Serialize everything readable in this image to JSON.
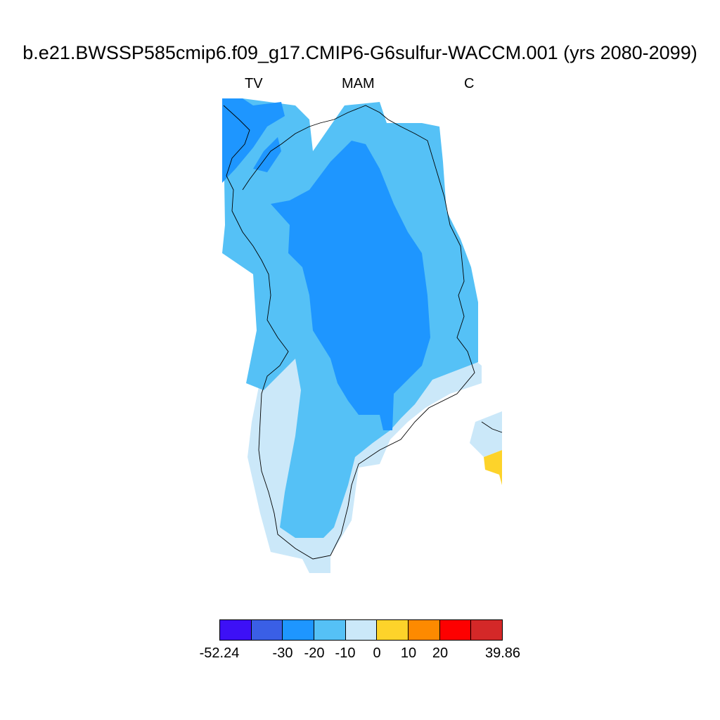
{
  "title": "b.e21.BWSSP585cmip6.f09_g17.CMIP6-G6sulfur-WACCM.001 (yrs 2080-2099)",
  "subtitles": {
    "left": "TV",
    "center": "MAM",
    "right": "C"
  },
  "colors": {
    "deep": "#1e96ff",
    "mid": "#55c1f6",
    "light": "#cbe8f9",
    "positive": "#fdd32a",
    "coast": "#000000"
  },
  "colorbar": {
    "colors": [
      "#3d10f6",
      "#3a5fe6",
      "#1e96ff",
      "#55c1f6",
      "#cbe8f9",
      "#fdd32a",
      "#fd8a00",
      "#fd0000",
      "#d42828"
    ],
    "labels": [
      "-52.24",
      "-30",
      "-20",
      "-10",
      "0",
      "10",
      "20",
      "39.86"
    ]
  }
}
